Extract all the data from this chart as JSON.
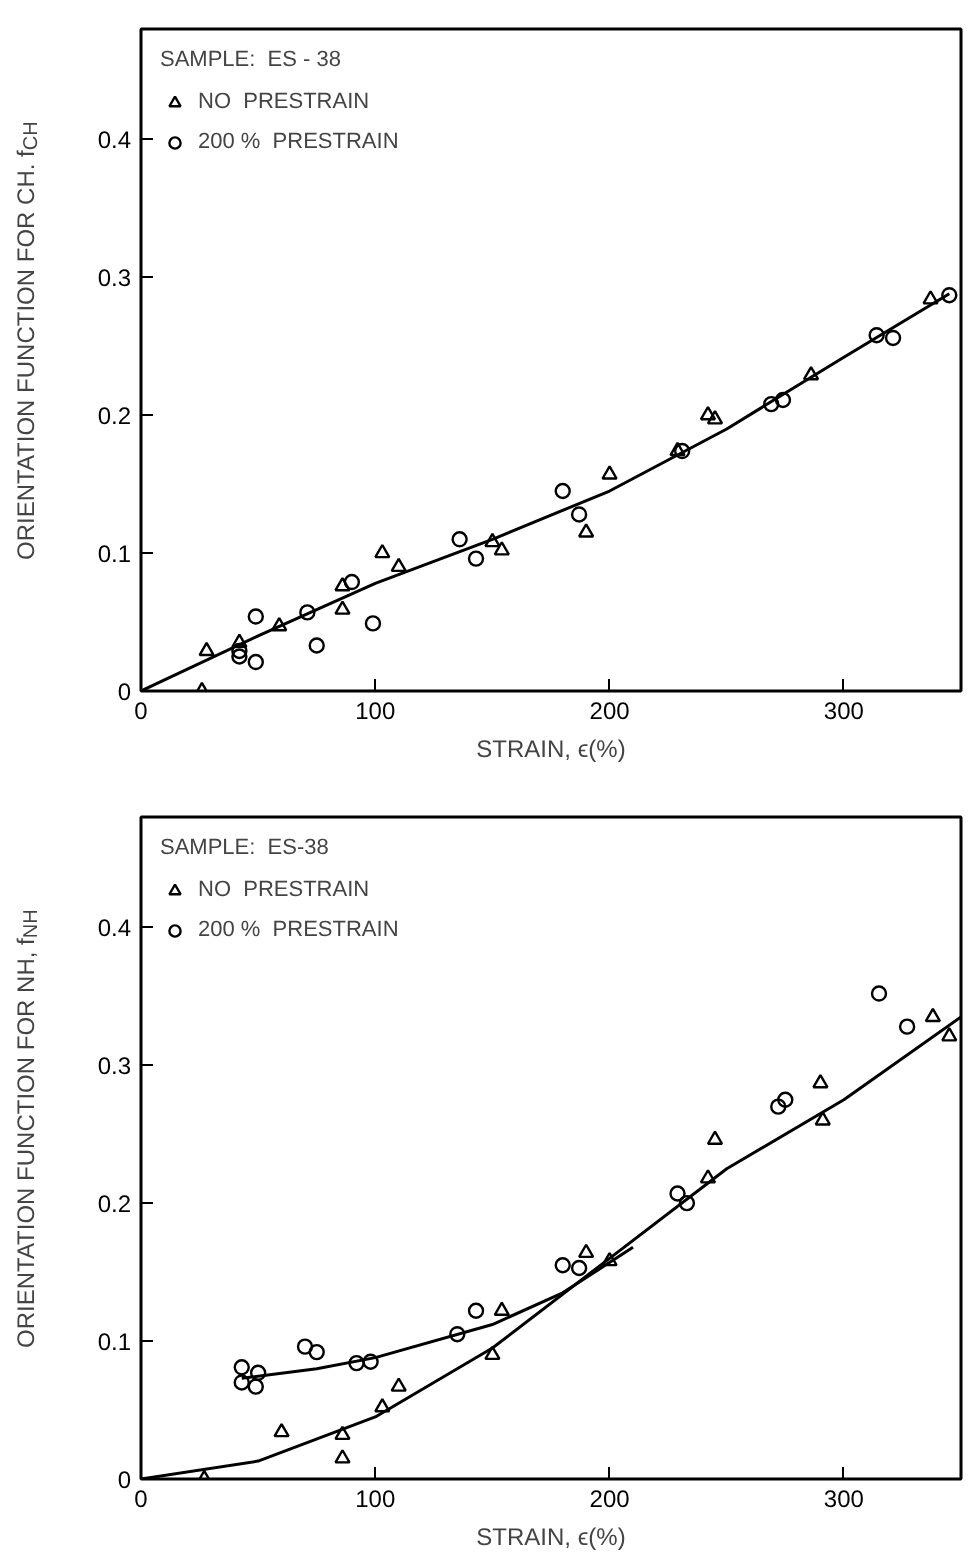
{
  "chart_data": [
    {
      "type": "scatter",
      "xlabel": "STRAIN, ϵ(%)",
      "ylabel": "ORIENTATION FUNCTION FOR CH. f$_{CH}$",
      "legend_title": "SAMPLE:  ES - 38",
      "legend": "top left",
      "xlim": [
        0,
        350
      ],
      "ylim": [
        0,
        0.48
      ],
      "xticks": [
        0,
        100,
        200,
        300
      ],
      "yticks": [
        0,
        0.1,
        0.2,
        0.3,
        0.4
      ],
      "series": [
        {
          "name": "NO  PRESTRAIN",
          "color": "#000000",
          "marker": "triangle",
          "x": [
            26,
            28,
            42,
            59,
            86,
            86,
            103,
            110,
            150,
            154,
            190,
            200,
            229,
            242,
            245,
            286,
            337
          ],
          "values": [
            0,
            0.029,
            0.035,
            0.047,
            0.076,
            0.059,
            0.1,
            0.09,
            0.108,
            0.102,
            0.115,
            0.157,
            0.174,
            0.2,
            0.197,
            0.229,
            0.284
          ]
        },
        {
          "name": "200 %  PRESTRAIN",
          "color": "#000000",
          "marker": "circle",
          "x": [
            42,
            42,
            49,
            49,
            71,
            75,
            90,
            99,
            136,
            143,
            180,
            187,
            231,
            269,
            274,
            314,
            321,
            345
          ],
          "values": [
            0.025,
            0.029,
            0.054,
            0.021,
            0.057,
            0.033,
            0.079,
            0.049,
            0.11,
            0.096,
            0.145,
            0.128,
            0.174,
            0.208,
            0.211,
            0.258,
            0.256,
            0.287
          ]
        },
        {
          "type": "line",
          "color": "#000000",
          "x": [
            0,
            50,
            100,
            150,
            200,
            250,
            300,
            345
          ],
          "values": [
            0,
            0.04,
            0.078,
            0.11,
            0.145,
            0.19,
            0.242,
            0.288
          ]
        }
      ]
    },
    {
      "type": "scatter",
      "xlabel": "STRAIN, ϵ(%)",
      "ylabel": "ORIENTATION FUNCTION FOR NH, f$_{NH}$",
      "legend_title": "SAMPLE:  ES-38",
      "legend": "top left",
      "xlim": [
        0,
        350
      ],
      "ylim": [
        0,
        0.48
      ],
      "xticks": [
        0,
        100,
        200,
        300
      ],
      "yticks": [
        0,
        0.1,
        0.2,
        0.3,
        0.4
      ],
      "series": [
        {
          "name": "NO  PRESTRAIN",
          "color": "#000000",
          "marker": "triangle",
          "x": [
            27,
            60,
            86,
            86,
            103,
            110,
            150,
            154,
            190,
            200,
            242,
            245,
            290,
            291,
            338,
            345
          ],
          "values": [
            0,
            0.034,
            0.032,
            0.015,
            0.052,
            0.067,
            0.09,
            0.122,
            0.164,
            0.158,
            0.218,
            0.246,
            0.287,
            0.26,
            0.335,
            0.321
          ]
        },
        {
          "name": "200 %  PRESTRAIN",
          "color": "#000000",
          "marker": "circle",
          "x": [
            43,
            43,
            49,
            50,
            70,
            75,
            92,
            98,
            135,
            143,
            180,
            187,
            229,
            233,
            272,
            275,
            315,
            327
          ],
          "values": [
            0.081,
            0.07,
            0.067,
            0.077,
            0.096,
            0.092,
            0.084,
            0.085,
            0.105,
            0.122,
            0.155,
            0.153,
            0.207,
            0.2,
            0.27,
            0.275,
            0.352,
            0.328
          ]
        },
        {
          "type": "line",
          "color": "#000000",
          "x": [
            43,
            75,
            100,
            150,
            180,
            210
          ],
          "values": [
            0.073,
            0.08,
            0.088,
            0.112,
            0.135,
            0.168
          ]
        },
        {
          "type": "line",
          "color": "#000000",
          "x": [
            0,
            50,
            100,
            150,
            200,
            250,
            300,
            350
          ],
          "values": [
            0,
            0.013,
            0.045,
            0.095,
            0.16,
            0.225,
            0.275,
            0.335
          ]
        }
      ]
    }
  ]
}
